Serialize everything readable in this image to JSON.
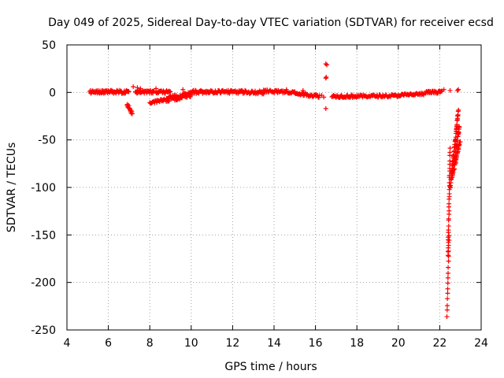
{
  "chart_data": {
    "type": "scatter",
    "title": "Day 049 of 2025, Sidereal Day-to-day VTEC variation (SDTVAR) for receiver ecsd",
    "xlabel": "GPS time / hours",
    "ylabel": "SDTVAR / TECUs",
    "xlim": [
      4,
      24
    ],
    "ylim": [
      -250,
      50
    ],
    "xticks": [
      4,
      6,
      8,
      10,
      12,
      14,
      16,
      18,
      20,
      22,
      24
    ],
    "yticks": [
      -250,
      -200,
      -150,
      -100,
      -50,
      0,
      50
    ],
    "grid": true,
    "marker": "+",
    "color": "#ff0000",
    "series": [
      {
        "name": "SDTVAR",
        "segments": [
          {
            "x0": 5.1,
            "x1": 6.0,
            "y0": 0.5,
            "y1": 0.5,
            "spread": 3.0,
            "n": 40
          },
          {
            "x0": 6.0,
            "x1": 7.0,
            "y0": 0.5,
            "y1": 0.5,
            "spread": 3.5,
            "n": 40
          },
          {
            "x0": 6.9,
            "x1": 7.15,
            "y0": -12,
            "y1": -22,
            "spread": 4.0,
            "n": 14
          },
          {
            "x0": 7.3,
            "x1": 8.2,
            "y0": 0.5,
            "y1": 0.5,
            "spread": 3.0,
            "n": 36
          },
          {
            "x0": 8.0,
            "x1": 8.7,
            "y0": -11,
            "y1": -8,
            "spread": 2.5,
            "n": 24
          },
          {
            "x0": 8.3,
            "x1": 9.0,
            "y0": 0.5,
            "y1": 0.5,
            "spread": 3.0,
            "n": 24
          },
          {
            "x0": 8.8,
            "x1": 10.0,
            "y0": -7,
            "y1": -2,
            "spread": 6.0,
            "n": 80
          },
          {
            "x0": 10.0,
            "x1": 11.5,
            "y0": 0.5,
            "y1": 0.5,
            "spread": 3.5,
            "n": 55
          },
          {
            "x0": 11.5,
            "x1": 13.5,
            "y0": 0.5,
            "y1": 0.0,
            "spread": 3.5,
            "n": 65
          },
          {
            "x0": 13.5,
            "x1": 15.0,
            "y0": 1.5,
            "y1": 0.0,
            "spread": 2.5,
            "n": 45
          },
          {
            "x0": 15.0,
            "x1": 16.2,
            "y0": -1.0,
            "y1": -4.0,
            "spread": 3.0,
            "n": 40
          },
          {
            "x0": 16.8,
            "x1": 18.0,
            "y0": -4.0,
            "y1": -4.0,
            "spread": 3.0,
            "n": 40
          },
          {
            "x0": 18.0,
            "x1": 20.0,
            "y0": -4.0,
            "y1": -3.5,
            "spread": 2.5,
            "n": 60
          },
          {
            "x0": 20.0,
            "x1": 21.3,
            "y0": -3.0,
            "y1": -1.5,
            "spread": 2.5,
            "n": 40
          },
          {
            "x0": 21.3,
            "x1": 22.1,
            "y0": 0.0,
            "y1": 0.5,
            "spread": 2.5,
            "n": 30
          },
          {
            "x0": 22.35,
            "x1": 22.45,
            "y0": -235,
            "y1": -150,
            "spread": 2.0,
            "n": 16
          },
          {
            "x0": 22.4,
            "x1": 22.5,
            "y0": -170,
            "y1": -60,
            "spread": 3.0,
            "n": 30
          },
          {
            "x0": 22.5,
            "x1": 22.9,
            "y0": -100,
            "y1": -20,
            "spread": 4.0,
            "n": 50
          },
          {
            "x0": 22.6,
            "x1": 22.95,
            "y0": -90,
            "y1": -35,
            "spread": 4.0,
            "n": 35
          },
          {
            "x0": 22.7,
            "x1": 22.98,
            "y0": -80,
            "y1": -50,
            "spread": 4.0,
            "n": 22
          }
        ],
        "points": [
          [
            7.2,
            6
          ],
          [
            7.4,
            5
          ],
          [
            7.55,
            4
          ],
          [
            8.3,
            4
          ],
          [
            9.6,
            3
          ],
          [
            14.6,
            3
          ],
          [
            15.4,
            2
          ],
          [
            16.5,
            30
          ],
          [
            16.55,
            29
          ],
          [
            16.5,
            15
          ],
          [
            16.52,
            16
          ],
          [
            16.5,
            -17
          ],
          [
            16.3,
            -3
          ],
          [
            16.4,
            -5
          ],
          [
            22.2,
            3
          ],
          [
            22.85,
            2
          ],
          [
            22.9,
            3
          ],
          [
            22.5,
            2
          ]
        ]
      }
    ]
  }
}
